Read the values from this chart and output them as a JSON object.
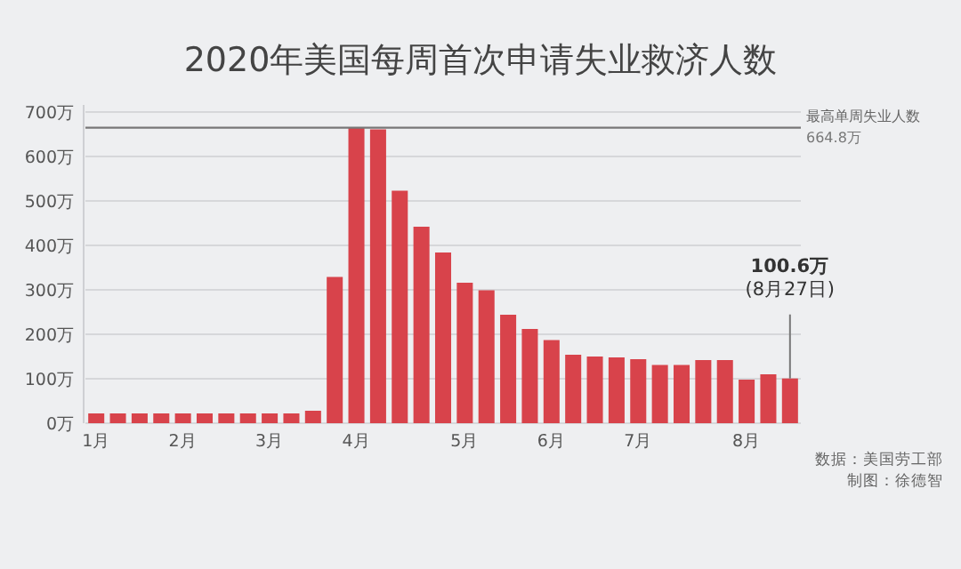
{
  "chart_data": {
    "type": "bar",
    "title": "2020年美国每周首次申请失业救济人数",
    "categories": [
      "1月",
      null,
      null,
      null,
      "2月",
      null,
      null,
      null,
      "3月",
      null,
      null,
      null,
      "4月",
      null,
      null,
      null,
      null,
      "5月",
      null,
      null,
      null,
      "6月",
      null,
      null,
      null,
      "7月",
      null,
      null,
      null,
      null,
      "8月",
      null,
      null
    ],
    "values": [
      22,
      22,
      22,
      22,
      22,
      22,
      22,
      22,
      22,
      22,
      28,
      329,
      665,
      661,
      523,
      442,
      384,
      316,
      299,
      244,
      212,
      187,
      154,
      150,
      148,
      144,
      131,
      131,
      142,
      142,
      98,
      110,
      100.6
    ],
    "color": "#d8434b",
    "ylim": [
      0,
      700
    ],
    "yticks": [
      {
        "value": 0,
        "label": "0万"
      },
      {
        "value": 100,
        "label": "100万"
      },
      {
        "value": 200,
        "label": "200万"
      },
      {
        "value": 300,
        "label": "300万"
      },
      {
        "value": 400,
        "label": "400万"
      },
      {
        "value": 500,
        "label": "500万"
      },
      {
        "value": 600,
        "label": "600万"
      },
      {
        "value": 700,
        "label": "700万"
      }
    ],
    "grid": "y",
    "ref_lines": [
      {
        "axis": "y",
        "value": 664.8,
        "label": "最高单周失业人数",
        "color": "#777777"
      }
    ],
    "annotations": [
      "664.8万",
      {
        "text": "100.6万\n(8月27日)",
        "y": 100.6
      },
      "数据：美国劳工部",
      "制图：徐德智"
    ]
  }
}
